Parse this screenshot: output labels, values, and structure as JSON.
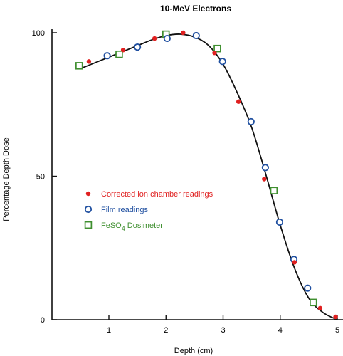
{
  "chart_data": {
    "type": "scatter",
    "title": "10-MeV Electrons",
    "xlabel": "Depth (cm)",
    "ylabel": "Percentage Depth Dose",
    "xlim": [
      0.3,
      5.1
    ],
    "ylim": [
      0,
      100
    ],
    "xticks": [
      1,
      2,
      3,
      4,
      5
    ],
    "yticks": [
      0,
      50,
      100
    ],
    "grid": false,
    "legend_position": "center-left",
    "curve": {
      "x": [
        0.5,
        0.75,
        1.0,
        1.25,
        1.5,
        1.75,
        2.0,
        2.25,
        2.5,
        2.75,
        3.0,
        3.25,
        3.5,
        3.75,
        4.0,
        4.25,
        4.5,
        4.75,
        5.0
      ],
      "y": [
        87.5,
        89.5,
        91.5,
        93.5,
        95.5,
        97.5,
        99.0,
        99.5,
        98.5,
        95.5,
        89.0,
        79.0,
        67.0,
        50.5,
        33.0,
        18.0,
        7.5,
        2.5,
        0.0
      ]
    },
    "series": [
      {
        "name": "Corrected ion chamber readings",
        "marker": "filled-circle",
        "color": "#e02020",
        "x": [
          0.65,
          1.25,
          1.8,
          2.3,
          2.85,
          3.27,
          3.72,
          4.25,
          4.7,
          4.97
        ],
        "y": [
          90,
          94,
          98,
          100,
          93,
          76,
          49,
          20,
          4,
          1
        ]
      },
      {
        "name": "Film readings",
        "marker": "open-circle",
        "color": "#1f4fa0",
        "x": [
          0.97,
          1.5,
          2.02,
          2.53,
          2.99,
          3.49,
          3.74,
          3.99,
          4.24,
          4.48
        ],
        "y": [
          92,
          95,
          98,
          99,
          90,
          69,
          53,
          34,
          21,
          11
        ]
      },
      {
        "name": "FeSO4 Dosimeter",
        "marker": "open-square",
        "color": "#3f8f2f",
        "x": [
          0.48,
          1.18,
          2.0,
          2.9,
          3.89,
          4.58
        ],
        "y": [
          88.5,
          92.5,
          99.5,
          94.5,
          45,
          6
        ]
      }
    ]
  }
}
